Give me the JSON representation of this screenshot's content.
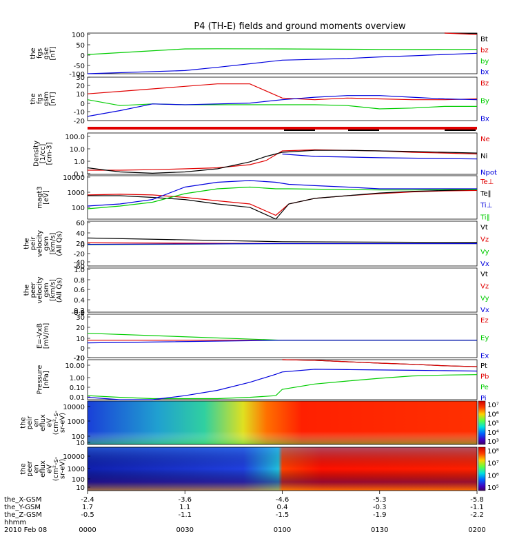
{
  "title": "P4 (TH-E) fields and ground moments overview",
  "time_axis": {
    "ticks": [
      "0000",
      "0030",
      "0100",
      "0130",
      "0200"
    ],
    "row_labels": [
      "the_X-GSM",
      "the_Y-GSM",
      "the_Z-GSM",
      "hhmm",
      "2010 Feb 08"
    ],
    "the_X-GSM": [
      "-2.4",
      "-3.6",
      "-4.6",
      "-5.3",
      "-5.8"
    ],
    "the_Y-GSM": [
      "1.7",
      "1.1",
      "0.4",
      "-0.3",
      "-1.1"
    ],
    "the_Z-GSM": [
      "-0.5",
      "-1.1",
      "-1.5",
      "-1.9",
      "-2.2"
    ]
  },
  "colors": {
    "black": "#000000",
    "red": "#e00000",
    "green": "#00cc00",
    "blue": "#0000dd"
  },
  "chart_data": [
    {
      "type": "line",
      "id": "fgs_gse",
      "ylabel_lines": [
        "the",
        "fgs",
        "gse",
        "[nT]"
      ],
      "ticks": [
        "100",
        "50",
        "0",
        "-50",
        "-100"
      ],
      "legend": [
        {
          "name": "Bt",
          "color": "#000000"
        },
        {
          "name": "bz",
          "color": "#e00000"
        },
        {
          "name": "by",
          "color": "#00cc00"
        },
        {
          "name": "bx",
          "color": "#0000dd"
        }
      ],
      "x": [
        0,
        30,
        40,
        60,
        80,
        90,
        100,
        110,
        120
      ],
      "series": [
        {
          "name": "Bt",
          "values": [
            null,
            null,
            null,
            null,
            null,
            null,
            null,
            104,
            102
          ]
        },
        {
          "name": "bz",
          "values": [
            null,
            null,
            null,
            null,
            null,
            null,
            null,
            105,
            95
          ]
        },
        {
          "name": "by",
          "values": [
            -30,
            5,
            6,
            5,
            3,
            2,
            1,
            2,
            2
          ]
        },
        {
          "name": "bx",
          "values": [
            -150,
            -130,
            -110,
            -65,
            -55,
            -45,
            -38,
            -30,
            -22
          ]
        }
      ]
    },
    {
      "type": "line",
      "id": "fgs_gsm",
      "ylabel_lines": [
        "the",
        "fgs",
        "gsm",
        "[nT]"
      ],
      "ticks": [
        "30",
        "20",
        "10",
        "0",
        "-10",
        "-20"
      ],
      "legend": [
        {
          "name": "Bz",
          "color": "#e00000"
        },
        {
          "name": "By",
          "color": "#00cc00"
        },
        {
          "name": "Bx",
          "color": "#0000dd"
        }
      ],
      "x": [
        0,
        10,
        20,
        30,
        40,
        50,
        60,
        70,
        80,
        90,
        100,
        110,
        120
      ],
      "series": [
        {
          "name": "Bz",
          "values": [
            10,
            13,
            16,
            19,
            22,
            22,
            5,
            3,
            5,
            4,
            3,
            3,
            4
          ]
        },
        {
          "name": "By",
          "values": [
            3,
            -4,
            -2,
            -3,
            -3,
            -3,
            -3,
            -3,
            -4,
            -8,
            -7,
            -5,
            -5
          ]
        },
        {
          "name": "Bx",
          "values": [
            -17,
            -10,
            -2,
            -3,
            -2,
            -1,
            3,
            6,
            8,
            8,
            6,
            4,
            3
          ]
        }
      ]
    },
    {
      "type": "line",
      "id": "density",
      "ylabel_lines": [
        "Density",
        "[1/cc]",
        "[cm-3]"
      ],
      "ticks": [
        "100.0",
        "10.0",
        "1.0",
        "0.1"
      ],
      "legend": [
        {
          "name": "Ne",
          "color": "#e00000"
        },
        {
          "name": "Ni",
          "color": "#000000"
        },
        {
          "name": "Npot",
          "color": "#0000dd"
        }
      ],
      "x": [
        0,
        10,
        20,
        30,
        40,
        50,
        55,
        60,
        70,
        80,
        90,
        100,
        110,
        120
      ],
      "series": [
        {
          "name": "Ne",
          "values": [
            0.2,
            0.2,
            0.22,
            0.25,
            0.3,
            0.5,
            1,
            5,
            6,
            5.5,
            5,
            4,
            3.5,
            3
          ]
        },
        {
          "name": "Ni",
          "values": [
            0.3,
            0.15,
            0.12,
            0.15,
            0.25,
            0.8,
            2,
            4,
            5.5,
            5.5,
            5,
            4.5,
            4,
            3.5
          ]
        },
        {
          "name": "Npot",
          "values": [
            null,
            null,
            null,
            null,
            null,
            null,
            null,
            3,
            2,
            1.8,
            1.6,
            1.5,
            1.4,
            1.3
          ]
        }
      ]
    },
    {
      "type": "line",
      "id": "temp",
      "ylabel_lines": [
        "magt3",
        "[eV]"
      ],
      "ticks": [
        "10000",
        "1000",
        "100"
      ],
      "legend": [
        {
          "name": "Te⊥",
          "color": "#e00000"
        },
        {
          "name": "Te‖",
          "color": "#000000"
        },
        {
          "name": "Ti⊥",
          "color": "#0000dd"
        },
        {
          "name": "Ti‖",
          "color": "#00cc00"
        }
      ],
      "x": [
        0,
        10,
        20,
        30,
        40,
        50,
        58,
        62,
        70,
        80,
        90,
        100,
        110,
        120
      ],
      "series": [
        {
          "name": "Te⊥",
          "values": [
            1300,
            1400,
            1300,
            1000,
            700,
            500,
            150,
            500,
            900,
            1200,
            1500,
            1800,
            2000,
            2100
          ]
        },
        {
          "name": "Te‖",
          "values": [
            1200,
            1200,
            1000,
            800,
            500,
            350,
            100,
            500,
            900,
            1200,
            1600,
            1900,
            2100,
            2300
          ]
        },
        {
          "name": "Ti⊥",
          "values": [
            400,
            500,
            800,
            3000,
            5000,
            6000,
            5000,
            4000,
            3500,
            3000,
            2500,
            2500,
            2500,
            2500
          ]
        },
        {
          "name": "Ti‖",
          "values": [
            300,
            400,
            600,
            1500,
            2500,
            3000,
            2500,
            2500,
            2400,
            2300,
            2200,
            2200,
            2300,
            2300
          ]
        }
      ]
    },
    {
      "type": "line",
      "id": "peir_velocity",
      "ylabel_lines": [
        "the",
        "peir",
        "velocity",
        "gsm",
        "[km/s]",
        "(All Qs)"
      ],
      "ticks": [
        "60",
        "40",
        "20",
        "0",
        "-20",
        "-40",
        "-60"
      ],
      "legend": [
        {
          "name": "Vt",
          "color": "#000000"
        },
        {
          "name": "Vz",
          "color": "#e00000"
        },
        {
          "name": "Vy",
          "color": "#00cc00"
        },
        {
          "name": "Vx",
          "color": "#0000dd"
        }
      ],
      "x": [
        0,
        60,
        120
      ],
      "series": [
        {
          "name": "Vt",
          "values": [
            15,
            5,
            3
          ]
        },
        {
          "name": "Vz",
          "values": [
            2,
            0,
            0
          ]
        },
        {
          "name": "Vy",
          "values": [
            -3,
            0,
            0
          ]
        },
        {
          "name": "Vx",
          "values": [
            -2,
            0,
            0
          ]
        }
      ]
    },
    {
      "type": "line",
      "id": "peer_velocity",
      "ylabel_lines": [
        "the",
        "peer",
        "velocity",
        "gsm",
        "[km/s]",
        "(All Qs)"
      ],
      "ticks": [
        "1.0",
        "0.8",
        "0.6",
        "0.4",
        "0.2",
        "0.0",
        "-0.2"
      ],
      "legend": [
        {
          "name": "Vt",
          "color": "#000000"
        },
        {
          "name": "Vz",
          "color": "#e00000"
        },
        {
          "name": "Vy",
          "color": "#00cc00"
        },
        {
          "name": "Vx",
          "color": "#0000dd"
        }
      ],
      "x": [],
      "series": []
    },
    {
      "type": "line",
      "id": "efield",
      "ylabel_lines": [
        "E=-VxB",
        "[mV/m]"
      ],
      "ticks": [
        "30",
        "20",
        "10",
        "0",
        "-10",
        "-20"
      ],
      "legend": [
        {
          "name": "Ez",
          "color": "#e00000"
        },
        {
          "name": "Ey",
          "color": "#00cc00"
        },
        {
          "name": "Ex",
          "color": "#0000dd"
        }
      ],
      "x": [
        0,
        60,
        120
      ],
      "series": [
        {
          "name": "Ez",
          "values": [
            0,
            0,
            0
          ]
        },
        {
          "name": "Ey",
          "values": [
            8,
            0,
            0
          ]
        },
        {
          "name": "Ex",
          "values": [
            -3,
            0,
            0
          ]
        }
      ]
    },
    {
      "type": "line",
      "id": "pressure",
      "ylabel_lines": [
        "Pressure",
        "[nPa]"
      ],
      "ticks": [
        "10.00",
        "1.00",
        "0.10",
        "0.01"
      ],
      "legend": [
        {
          "name": "Pt",
          "color": "#000000"
        },
        {
          "name": "Pb",
          "color": "#e00000"
        },
        {
          "name": "Pe",
          "color": "#00cc00"
        },
        {
          "name": "Pi",
          "color": "#0000dd"
        }
      ],
      "x": [
        0,
        10,
        20,
        30,
        40,
        50,
        58,
        60,
        70,
        80,
        90,
        100,
        110,
        120
      ],
      "series": [
        {
          "name": "Pt",
          "values": [
            null,
            null,
            null,
            null,
            null,
            null,
            null,
            11,
            9,
            7,
            5.5,
            4.5,
            3.5,
            3
          ]
        },
        {
          "name": "Pb",
          "values": [
            null,
            null,
            null,
            null,
            null,
            null,
            null,
            11,
            9,
            7,
            5.5,
            4.5,
            3.5,
            3
          ]
        },
        {
          "name": "Pe",
          "values": [
            0.02,
            0.015,
            0.012,
            0.012,
            0.012,
            0.015,
            0.02,
            0.06,
            0.15,
            0.25,
            0.4,
            0.6,
            0.7,
            0.75
          ]
        },
        {
          "name": "Pi",
          "values": [
            0.015,
            0.006,
            0.008,
            0.02,
            0.05,
            0.2,
            0.8,
            1.2,
            1.9,
            1.8,
            1.7,
            1.6,
            1.5,
            1.4
          ]
        }
      ]
    },
    {
      "type": "heatmap",
      "id": "peir_eflux",
      "ylabel_lines": [
        "the",
        "peir",
        "en",
        "eflux",
        "eV",
        "(cm²-s-",
        "sr-eV)"
      ],
      "ticks": [
        "10000",
        "1000",
        "100",
        "10"
      ],
      "colorbar": [
        "10⁷",
        "10⁶",
        "10⁵",
        "10⁴",
        "10³"
      ]
    },
    {
      "type": "heatmap",
      "id": "peer_eflux",
      "ylabel_lines": [
        "the",
        "peer",
        "en",
        "eflux",
        "eV",
        "(cm²-s-",
        "sr-eV)"
      ],
      "ticks": [
        "10000",
        "1000",
        "100",
        "10"
      ],
      "colorbar": [
        "10⁸",
        "10⁷",
        "10⁶",
        "10⁵"
      ]
    }
  ]
}
